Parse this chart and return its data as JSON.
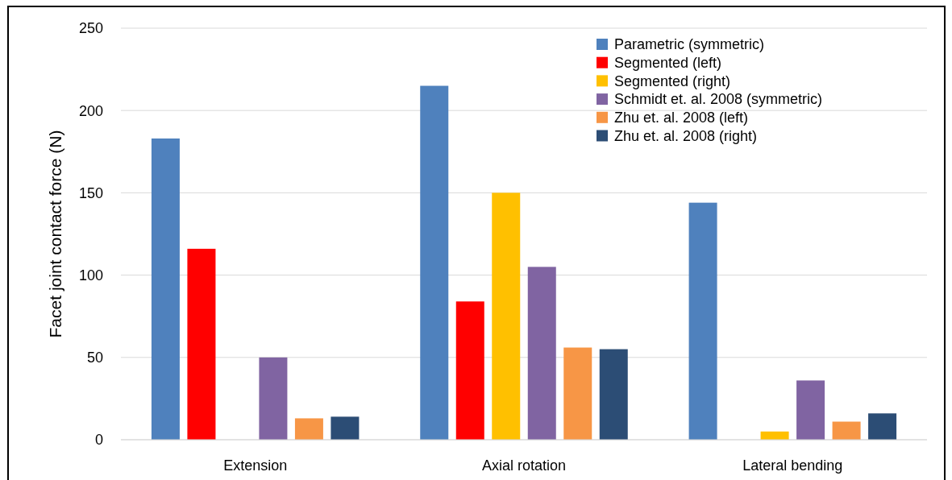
{
  "chart_data": {
    "type": "bar",
    "ylabel": "Facet joint contact force (N)",
    "categories": [
      "Extension",
      "Axial rotation",
      "Lateral bending"
    ],
    "series": [
      {
        "name": "Parametric (symmetric)",
        "color": "#4f81bd",
        "values": [
          183,
          215,
          144
        ]
      },
      {
        "name": "Segmented (left)",
        "color": "#ff0000",
        "values": [
          116,
          84,
          null
        ]
      },
      {
        "name": "Segmented (right)",
        "color": "#ffc000",
        "values": [
          null,
          150,
          5
        ]
      },
      {
        "name": "Schmidt et. al. 2008 (symmetric)",
        "color": "#8064a2",
        "values": [
          50,
          105,
          36
        ]
      },
      {
        "name": "Zhu et. al. 2008 (left)",
        "color": "#f79646",
        "values": [
          13,
          56,
          11
        ]
      },
      {
        "name": "Zhu et. al. 2008 (right)",
        "color": "#2c4d75",
        "values": [
          14,
          55,
          16
        ]
      }
    ],
    "ylim": [
      0,
      250
    ],
    "yticks": [
      0,
      50,
      100,
      150,
      200,
      250
    ],
    "grid": "y",
    "legend": "top right"
  }
}
